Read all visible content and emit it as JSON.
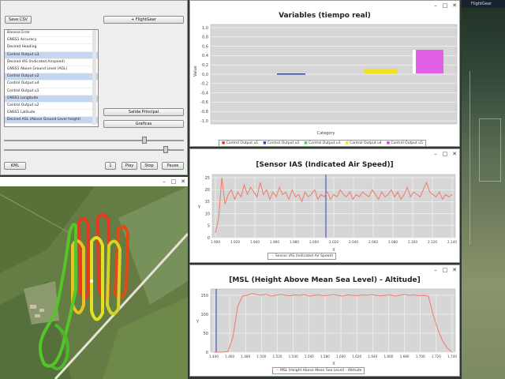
{
  "control_window": {
    "save_csv_label": "Save CSV",
    "flightgear_label": "+ FlightGear",
    "sensor_items": [
      "Barosia Error",
      "GNSS1 Accuracy",
      "Desired Heading",
      "Control Output u3",
      "Desired IAS (Indicated Airspeed)",
      "GNSS1 Above Ground Level (AGL)",
      "Control Output u2",
      "Control Output u4",
      "Control Output u1",
      "GNSS1 Longitude",
      "Control Output u2",
      "GNSS1 Latitude",
      "Desired ASL (Above Ground Level height)"
    ],
    "salida_principal_label": "Salida Principal",
    "graficas_label": "Graficas",
    "kml_label": "KML",
    "speed_value": "1",
    "play_label": "Play",
    "stop_label": "Stop",
    "pause_label": "Pause"
  },
  "variables_chart": {
    "title": "Variables (tiempo real)",
    "xlabel": "Category",
    "ylabel": "Value",
    "ticks": [
      "1,0",
      "0,8",
      "0,6",
      "0,4",
      "0,2",
      "0,0",
      "-0,2",
      "-0,4",
      "-0,6",
      "-0,8",
      "-1,0"
    ],
    "legend": [
      "Control Output u1",
      "Control Output u2",
      "Control Output u3",
      "Control Output u4",
      "Control Output u5"
    ],
    "colors": [
      "#e0362c",
      "#3344cc",
      "#4ad04a",
      "#f0e020",
      "#e040e0"
    ]
  },
  "ias_chart": {
    "title": "[Sensor IAS (Indicated Air Speed)]",
    "xlabel": "X",
    "ylabel": "Y",
    "yticks": [
      "25",
      "20",
      "15",
      "10",
      "5",
      "0"
    ],
    "xticks": [
      "1.900",
      "1.920",
      "1.940",
      "1.960",
      "1.980",
      "2.000",
      "2.020",
      "2.040",
      "2.060",
      "2.080",
      "2.100",
      "2.120",
      "2.140"
    ],
    "legend": "Sensor IAS (Indicated Air Speed)"
  },
  "msl_chart": {
    "title": "[MSL (Height Above Mean Sea Level) - Altitude]",
    "xlabel": "X",
    "ylabel": "Y",
    "yticks": [
      "150",
      "100",
      "50",
      "0"
    ],
    "xticks": [
      "1.440",
      "1.460",
      "1.480",
      "1.500",
      "1.520",
      "1.540",
      "1.560",
      "1.580",
      "1.600",
      "1.620",
      "1.640",
      "1.660",
      "1.680",
      "1.700",
      "1.720",
      "1.740"
    ],
    "legend": "MSL (Height Above Mean Sea Level) - Altitude"
  },
  "flightgear": {
    "title": "FlightGear"
  }
}
